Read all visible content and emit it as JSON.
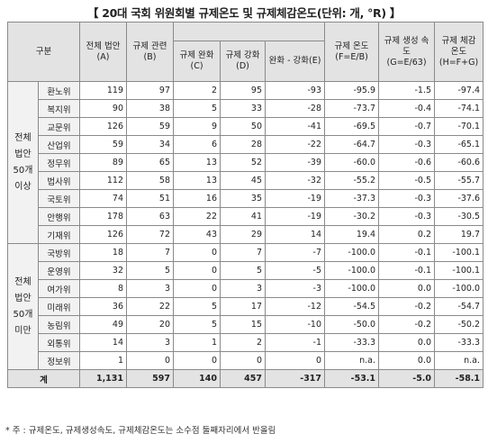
{
  "title": "【 20대 국회 위원회별 규제온도 및 규제체감온도(단위: 개, °R) 】",
  "headers": {
    "gubun": "구분",
    "total_bills": "전체 법안(A)",
    "reg_related": "규제 관련(B)",
    "relax": "규제 완화(C)",
    "strengthen": "규제 강화(D)",
    "relax_minus_strengthen": "완화 - 강화(E)",
    "reg_temp": "규제 온도 (F=E/B)",
    "reg_rate": "규제 생성 속도 (G=E/63)",
    "felt_temp": "규제 체감 온도 (H=F+G)"
  },
  "groups": [
    {
      "label": "전체 법안 50개 이상",
      "rows": [
        {
          "org": "환노위",
          "a": "119",
          "b": "97",
          "c": "2",
          "d": "95",
          "e": "-93",
          "f": "-95.9",
          "g": "-1.5",
          "h": "-97.4"
        },
        {
          "org": "복지위",
          "a": "90",
          "b": "38",
          "c": "5",
          "d": "33",
          "e": "-28",
          "f": "-73.7",
          "g": "-0.4",
          "h": "-74.1"
        },
        {
          "org": "교문위",
          "a": "126",
          "b": "59",
          "c": "9",
          "d": "50",
          "e": "-41",
          "f": "-69.5",
          "g": "-0.7",
          "h": "-70.1"
        },
        {
          "org": "산업위",
          "a": "59",
          "b": "34",
          "c": "6",
          "d": "28",
          "e": "-22",
          "f": "-64.7",
          "g": "-0.3",
          "h": "-65.1"
        },
        {
          "org": "정무위",
          "a": "89",
          "b": "65",
          "c": "13",
          "d": "52",
          "e": "-39",
          "f": "-60.0",
          "g": "-0.6",
          "h": "-60.6"
        },
        {
          "org": "법사위",
          "a": "112",
          "b": "58",
          "c": "13",
          "d": "45",
          "e": "-32",
          "f": "-55.2",
          "g": "-0.5",
          "h": "-55.7"
        },
        {
          "org": "국토위",
          "a": "74",
          "b": "51",
          "c": "16",
          "d": "35",
          "e": "-19",
          "f": "-37.3",
          "g": "-0.3",
          "h": "-37.6"
        },
        {
          "org": "안행위",
          "a": "178",
          "b": "63",
          "c": "22",
          "d": "41",
          "e": "-19",
          "f": "-30.2",
          "g": "-0.3",
          "h": "-30.5"
        },
        {
          "org": "기재위",
          "a": "126",
          "b": "72",
          "c": "43",
          "d": "29",
          "e": "14",
          "f": "19.4",
          "g": "0.2",
          "h": "19.7"
        }
      ]
    },
    {
      "label": "전체 법안 50개 미만",
      "rows": [
        {
          "org": "국방위",
          "a": "18",
          "b": "7",
          "c": "0",
          "d": "7",
          "e": "-7",
          "f": "-100.0",
          "g": "-0.1",
          "h": "-100.1"
        },
        {
          "org": "운영위",
          "a": "32",
          "b": "5",
          "c": "0",
          "d": "5",
          "e": "-5",
          "f": "-100.0",
          "g": "-0.1",
          "h": "-100.1"
        },
        {
          "org": "여가위",
          "a": "8",
          "b": "3",
          "c": "0",
          "d": "3",
          "e": "-3",
          "f": "-100.0",
          "g": "0.0",
          "h": "-100.0"
        },
        {
          "org": "미래위",
          "a": "36",
          "b": "22",
          "c": "5",
          "d": "17",
          "e": "-12",
          "f": "-54.5",
          "g": "-0.2",
          "h": "-54.7"
        },
        {
          "org": "농림위",
          "a": "49",
          "b": "20",
          "c": "5",
          "d": "15",
          "e": "-10",
          "f": "-50.0",
          "g": "-0.2",
          "h": "-50.2"
        },
        {
          "org": "외통위",
          "a": "14",
          "b": "3",
          "c": "1",
          "d": "2",
          "e": "-1",
          "f": "-33.3",
          "g": "0.0",
          "h": "-33.3"
        },
        {
          "org": "정보위",
          "a": "1",
          "b": "0",
          "c": "0",
          "d": "0",
          "e": "0",
          "f": "n.a.",
          "g": "0.0",
          "h": "n.a."
        }
      ]
    }
  ],
  "total": {
    "label": "계",
    "a": "1,131",
    "b": "597",
    "c": "140",
    "d": "457",
    "e": "-317",
    "f": "-53.1",
    "g": "-5.0",
    "h": "-58.1"
  },
  "footnote": "* 주 : 규제온도, 규제생성속도, 규제체감온도는 소수점 둘째자리에서 반올림"
}
